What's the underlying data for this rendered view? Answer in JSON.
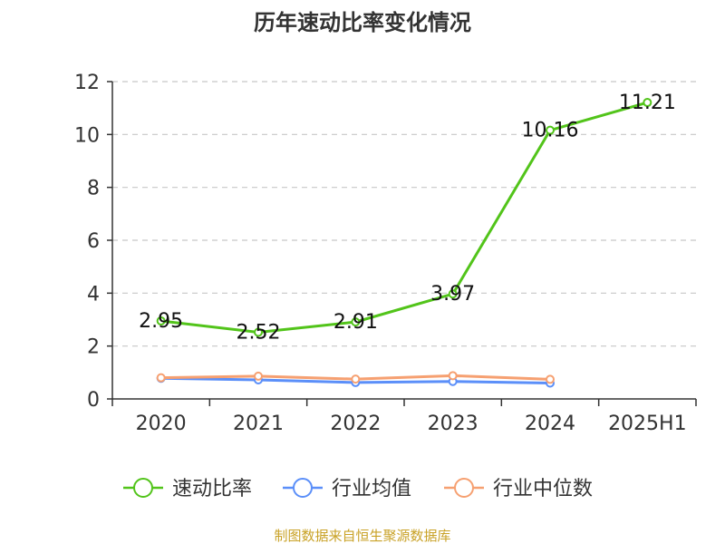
{
  "chart_data": {
    "type": "line",
    "title": "历年速动比率变化情况",
    "categories": [
      "2020",
      "2021",
      "2022",
      "2023",
      "2024",
      "2025H1"
    ],
    "ylim": [
      0,
      12
    ],
    "yticks": [
      0,
      2,
      4,
      6,
      8,
      10,
      12
    ],
    "grid": true,
    "legend_position": "bottom",
    "series": [
      {
        "name": "速动比率",
        "color": "#52c41a",
        "values": [
          2.95,
          2.52,
          2.91,
          3.97,
          10.16,
          11.21
        ],
        "labels": [
          "2.95",
          "2.52",
          "2.91",
          "3.97",
          "10.16",
          "11.21"
        ]
      },
      {
        "name": "行业均值",
        "color": "#5b8ff9",
        "values": [
          0.78,
          0.72,
          0.62,
          0.66,
          0.6,
          null
        ]
      },
      {
        "name": "行业中位数",
        "color": "#f6a071",
        "values": [
          0.8,
          0.86,
          0.75,
          0.88,
          0.74,
          null
        ]
      }
    ]
  },
  "source": "制图数据来自恒生聚源数据库"
}
